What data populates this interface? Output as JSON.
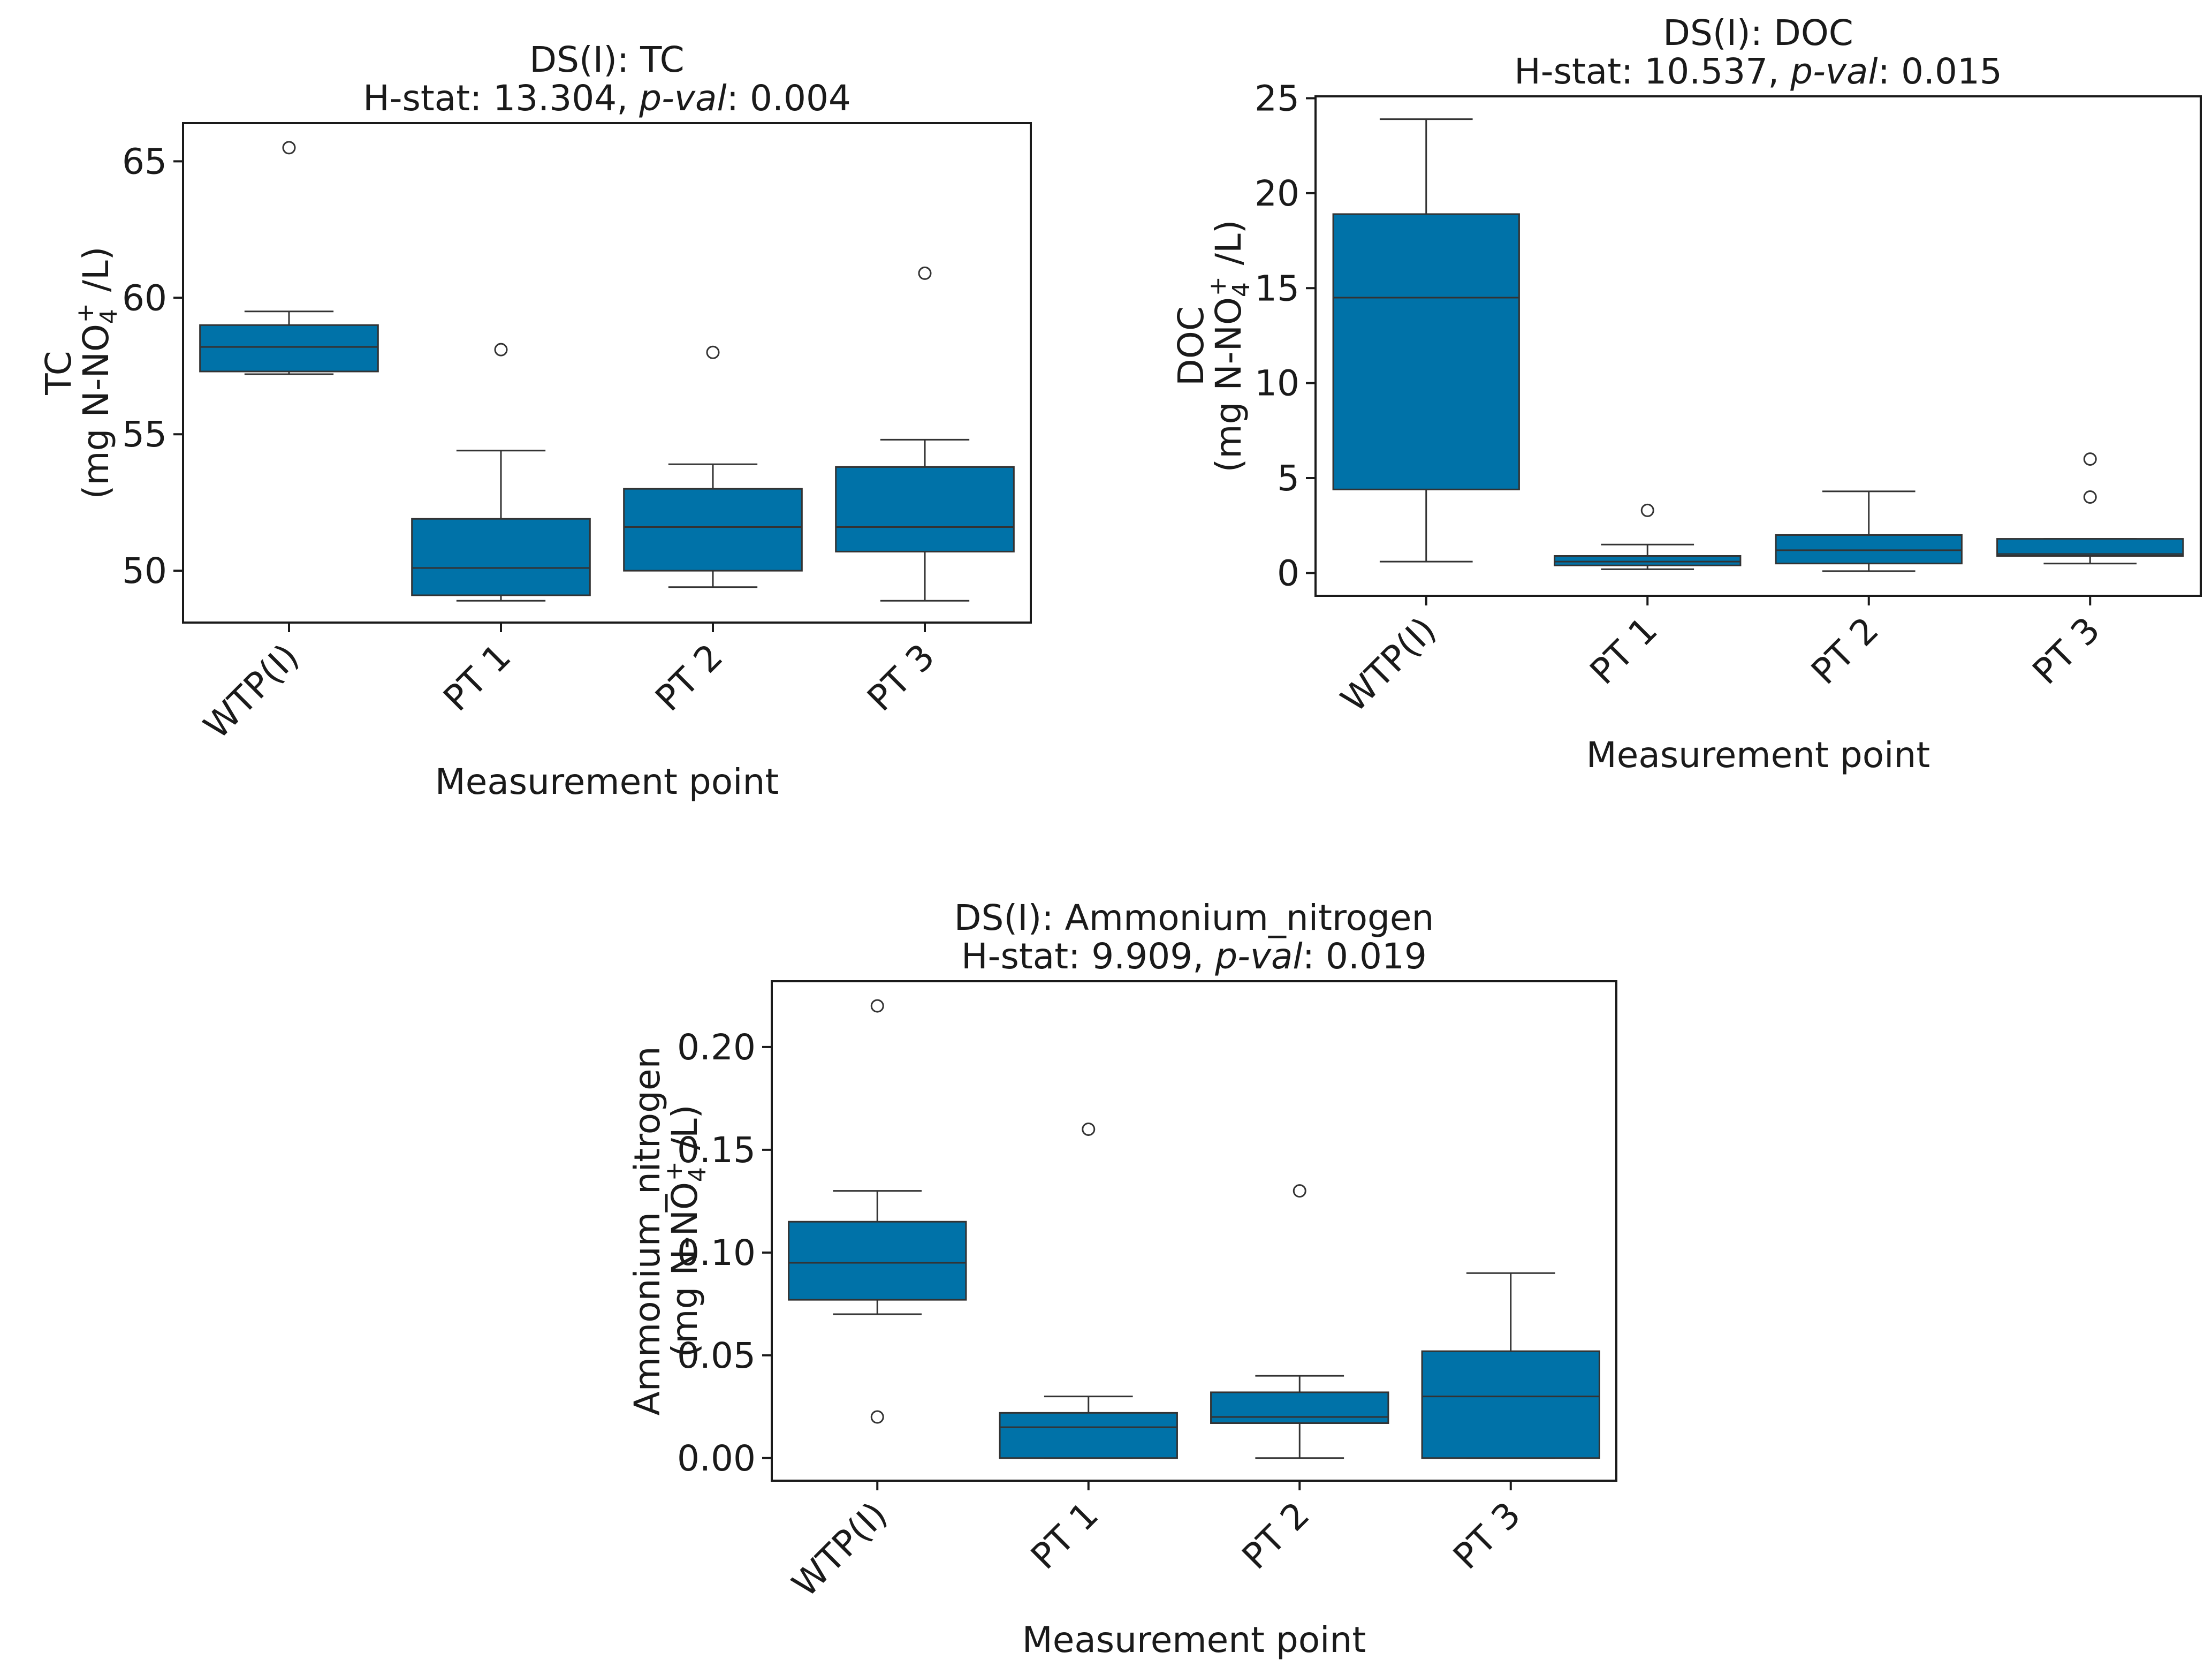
{
  "box_color": "#0072a8",
  "edge_color": "#333333",
  "axis_color": "#1a1a1a",
  "chart_data": [
    {
      "type": "box",
      "id": "tc",
      "title": "DS(I): TC",
      "stat_prefix": "H-stat: 13.304, ",
      "stat_pval_label": "p-val",
      "stat_suffix": ": 0.004",
      "xlabel": "Measurement point",
      "ylabel_line1": "TC",
      "ylabel_line2_a": "(mg N-NO",
      "ylabel_sub": "4",
      "ylabel_sup": "+",
      "ylabel_line2_b": " /L)",
      "ylim": [
        48.1,
        66.4
      ],
      "yticks": [
        50,
        55,
        60,
        65
      ],
      "categories": [
        "WTP(I)",
        "PT 1",
        "PT 2",
        "PT 3"
      ],
      "boxes": [
        {
          "whislo": 57.2,
          "q1": 57.3,
          "med": 58.2,
          "q3": 59.0,
          "whishi": 59.5,
          "fliers": [
            65.5
          ]
        },
        {
          "whislo": 48.9,
          "q1": 49.1,
          "med": 50.1,
          "q3": 51.9,
          "whishi": 54.4,
          "fliers": [
            58.1
          ]
        },
        {
          "whislo": 49.4,
          "q1": 50.0,
          "med": 51.6,
          "q3": 53.0,
          "whishi": 53.9,
          "fliers": [
            58.0
          ]
        },
        {
          "whislo": 48.9,
          "q1": 50.7,
          "med": 51.6,
          "q3": 53.8,
          "whishi": 54.8,
          "fliers": [
            60.9
          ]
        }
      ]
    },
    {
      "type": "box",
      "id": "doc",
      "title": "DS(I): DOC",
      "stat_prefix": "H-stat: 10.537, ",
      "stat_pval_label": "p-val",
      "stat_suffix": ": 0.015",
      "xlabel": "Measurement point",
      "ylabel_line1": "DOC",
      "ylabel_line2_a": "(mg N-NO",
      "ylabel_sub": "4",
      "ylabel_sup": "+",
      "ylabel_line2_b": " /L)",
      "ylim": [
        -1.2,
        25.1
      ],
      "yticks": [
        0,
        5,
        10,
        15,
        20,
        25
      ],
      "categories": [
        "WTP(I)",
        "PT 1",
        "PT 2",
        "PT 3"
      ],
      "boxes": [
        {
          "whislo": 0.6,
          "q1": 4.4,
          "med": 14.5,
          "q3": 18.9,
          "whishi": 23.9,
          "fliers": []
        },
        {
          "whislo": 0.2,
          "q1": 0.4,
          "med": 0.6,
          "q3": 0.9,
          "whishi": 1.5,
          "fliers": [
            3.3
          ]
        },
        {
          "whislo": 0.1,
          "q1": 0.5,
          "med": 1.2,
          "q3": 2.0,
          "whishi": 4.3,
          "fliers": []
        },
        {
          "whislo": 0.5,
          "q1": 0.9,
          "med": 1.0,
          "q3": 1.8,
          "whishi": 1.8,
          "fliers": [
            4.0,
            6.0
          ]
        }
      ]
    },
    {
      "type": "box",
      "id": "ammonium",
      "title": "DS(I): Ammonium_nitrogen",
      "stat_prefix": "H-stat: 9.909, ",
      "stat_pval_label": "p-val",
      "stat_suffix": ": 0.019",
      "xlabel": "Measurement point",
      "ylabel_line1": "Ammonium_nitrogen",
      "ylabel_line2_a": "(mg N-NO",
      "ylabel_sub": "4",
      "ylabel_sup": "+",
      "ylabel_line2_b": " /L)",
      "ylim": [
        -0.011,
        0.232
      ],
      "yticks": [
        0.0,
        0.05,
        0.1,
        0.15,
        0.2
      ],
      "ytick_labels": [
        "0.00",
        "0.05",
        "0.10",
        "0.15",
        "0.20"
      ],
      "categories": [
        "WTP(I)",
        "PT 1",
        "PT 2",
        "PT 3"
      ],
      "boxes": [
        {
          "whislo": 0.07,
          "q1": 0.077,
          "med": 0.095,
          "q3": 0.115,
          "whishi": 0.13,
          "fliers": [
            0.22,
            0.02
          ]
        },
        {
          "whislo": 0.0,
          "q1": 0.0,
          "med": 0.015,
          "q3": 0.022,
          "whishi": 0.03,
          "fliers": [
            0.16
          ]
        },
        {
          "whislo": 0.0,
          "q1": 0.017,
          "med": 0.02,
          "q3": 0.032,
          "whishi": 0.04,
          "fliers": [
            0.13
          ]
        },
        {
          "whislo": 0.0,
          "q1": 0.0,
          "med": 0.03,
          "q3": 0.052,
          "whishi": 0.09,
          "fliers": []
        }
      ]
    }
  ]
}
